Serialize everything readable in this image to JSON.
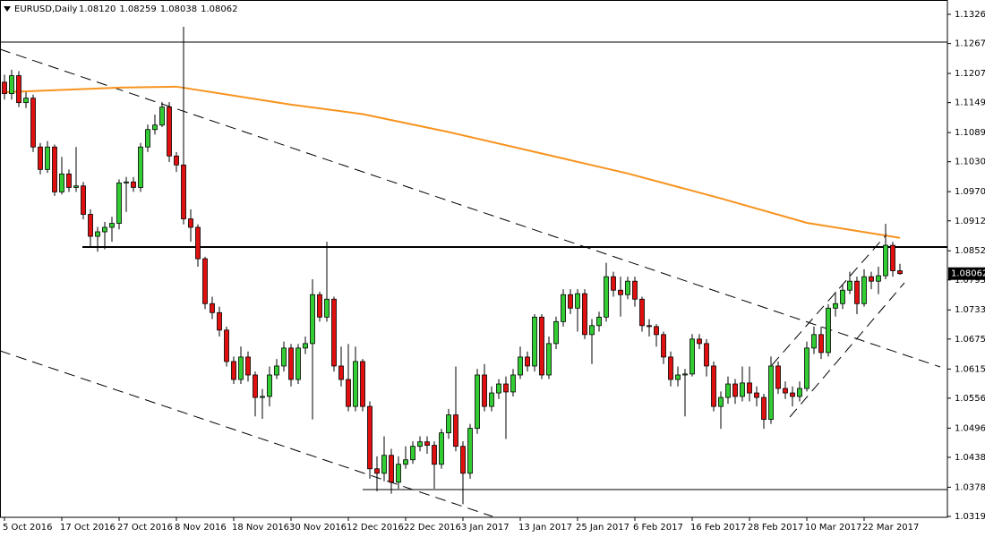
{
  "chart_data": {
    "type": "candlestick",
    "title": "EURUSD,Daily",
    "header_values": [
      "1.08120",
      "1.08259",
      "1.08038",
      "1.08062"
    ],
    "up_color": "#32cd32",
    "down_color": "#e01010",
    "wick_color": "#000000",
    "ylim": [
      1.03177,
      1.13547
    ],
    "yticks": [
      {
        "value": 1.1326,
        "label": "1.13260"
      },
      1.12675,
      1.12075,
      {
        "value": 1.1149,
        "label": "1.11490"
      },
      {
        "value": 1.1089,
        "label": "1.10890"
      },
      1.10305,
      1.09705,
      {
        "value": 1.0912,
        "label": "1.09120"
      },
      {
        "value": 1.0852,
        "label": "1.08520"
      },
      1.07935,
      1.07335,
      {
        "value": 1.0675,
        "label": "1.06750"
      },
      {
        "value": 1.0615,
        "label": "1.06150"
      },
      1.05565,
      1.04965,
      {
        "value": 1.0438,
        "label": "1.04380"
      },
      {
        "value": 1.0378,
        "label": "1.03780"
      },
      1.03195
    ],
    "categories": [
      "5 Oct 2016",
      null,
      null,
      null,
      null,
      null,
      null,
      null,
      "17 Oct 2016",
      null,
      null,
      null,
      null,
      null,
      null,
      null,
      "27 Oct 2016",
      null,
      null,
      null,
      null,
      null,
      null,
      null,
      "8 Nov 2016",
      null,
      null,
      null,
      null,
      null,
      null,
      null,
      "18 Nov 2016",
      null,
      null,
      null,
      null,
      null,
      null,
      null,
      "30 Nov 2016",
      null,
      null,
      null,
      null,
      null,
      null,
      null,
      "12 Dec 2016",
      null,
      null,
      null,
      null,
      null,
      null,
      null,
      "22 Dec 2016",
      null,
      null,
      null,
      null,
      null,
      null,
      null,
      "3 Jan 2017",
      null,
      null,
      null,
      null,
      null,
      null,
      null,
      "13 Jan 2017",
      null,
      null,
      null,
      null,
      null,
      null,
      null,
      "25 Jan 2017",
      null,
      null,
      null,
      null,
      null,
      null,
      null,
      "6 Feb 2017",
      null,
      null,
      null,
      null,
      null,
      null,
      null,
      "16 Feb 2017",
      null,
      null,
      null,
      null,
      null,
      null,
      null,
      "28 Feb 2017",
      null,
      null,
      null,
      null,
      null,
      null,
      null,
      "10 Mar 2017",
      null,
      null,
      null,
      null,
      null,
      null,
      null,
      "22 Mar 2017",
      null,
      null,
      null,
      null,
      null
    ],
    "open": [
      1.119,
      1.1167,
      1.1203,
      1.1149,
      1.1158,
      1.106,
      1.1015,
      1.106,
      1.097,
      1.1006,
      1.0979,
      1.0982,
      1.0925,
      1.0881,
      1.089,
      1.0899,
      1.0907,
      1.0988,
      1.099,
      1.0979,
      1.106,
      1.1095,
      1.1104,
      1.114,
      1.1042,
      1.1024,
      1.0916,
      1.0899,
      1.0836,
      1.0746,
      1.0728,
      1.0693,
      1.063,
      1.0594,
      1.0639,
      1.0603,
      1.0558,
      1.056,
      1.0603,
      1.0621,
      1.0657,
      1.0594,
      1.0657,
      1.0666,
      1.0764,
      1.0719,
      1.0755,
      1.0621,
      1.0594,
      1.054,
      1.063,
      1.054,
      1.0415,
      1.0406,
      1.0442,
      1.0388,
      1.0424,
      1.0433,
      1.046,
      1.0469,
      1.0462,
      1.0424,
      1.0487,
      1.0523,
      1.046,
      1.0406,
      1.0496,
      1.0603,
      1.054,
      1.0567,
      1.0585,
      1.0569,
      1.0603,
      1.0639,
      1.0621,
      1.0719,
      1.0603,
      1.0666,
      1.071,
      1.0764,
      1.0737,
      1.0766,
      1.0684,
      1.0702,
      1.0719,
      1.08,
      1.0773,
      1.0764,
      1.0791,
      1.0755,
      1.0702,
      1.07,
      1.0684,
      1.0639,
      1.0594,
      1.0603,
      1.0605,
      1.0675,
      1.0666,
      1.0621,
      1.054,
      1.0558,
      1.0585,
      1.056,
      1.0587,
      1.0567,
      1.0558,
      1.0514,
      1.0621,
      1.0576,
      1.0567,
      1.056,
      1.0576,
      1.0657,
      1.0684,
      1.0648,
      1.0737,
      1.0746,
      1.0773,
      1.0791,
      1.0746,
      1.08,
      1.0791,
      1.0802,
      1.0863,
      1.0812
    ],
    "high": [
      1.1205,
      1.1215,
      1.1212,
      1.117,
      1.1165,
      1.1068,
      1.1072,
      1.1065,
      1.104,
      1.1015,
      1.106,
      1.099,
      1.0935,
      1.09,
      1.091,
      1.092,
      1.0995,
      1.1,
      1.1,
      1.1068,
      1.1105,
      1.1125,
      1.115,
      1.115,
      1.105,
      1.1301,
      1.0935,
      1.0905,
      1.084,
      1.076,
      1.074,
      1.07,
      1.064,
      1.066,
      1.065,
      1.061,
      1.0575,
      1.062,
      1.0635,
      1.067,
      1.0665,
      1.0665,
      1.068,
      1.0795,
      1.077,
      1.087,
      1.076,
      1.066,
      1.0665,
      1.066,
      1.0635,
      1.055,
      1.044,
      1.048,
      1.0455,
      1.044,
      1.046,
      1.047,
      1.048,
      1.048,
      1.047,
      1.0495,
      1.0535,
      1.062,
      1.047,
      1.0505,
      1.0615,
      1.0625,
      1.058,
      1.0595,
      1.06,
      1.0615,
      1.066,
      1.065,
      1.0725,
      1.0725,
      1.068,
      1.072,
      1.0775,
      1.0775,
      1.0775,
      1.0775,
      1.0715,
      1.073,
      1.0828,
      1.081,
      1.08,
      1.08,
      1.08,
      1.076,
      1.0715,
      1.0705,
      1.069,
      1.065,
      1.062,
      1.0615,
      1.0685,
      1.0685,
      1.0675,
      1.063,
      1.057,
      1.06,
      1.0595,
      1.062,
      1.062,
      1.058,
      1.0565,
      1.064,
      1.063,
      1.059,
      1.058,
      1.059,
      1.067,
      1.07,
      1.07,
      1.0745,
      1.077,
      1.0785,
      1.081,
      1.08,
      1.0815,
      1.081,
      1.082,
      1.0906,
      1.087,
      1.08259
    ],
    "low": [
      1.1155,
      1.1155,
      1.114,
      1.1138,
      1.105,
      1.1005,
      1.1008,
      1.0962,
      1.0965,
      1.097,
      1.097,
      1.0915,
      1.086,
      1.085,
      1.0855,
      1.087,
      1.0895,
      1.093,
      1.097,
      1.097,
      1.105,
      1.1085,
      1.11,
      1.103,
      1.101,
      1.0905,
      1.087,
      1.082,
      1.0735,
      1.0715,
      1.068,
      1.062,
      1.0585,
      1.0585,
      1.059,
      1.052,
      1.0515,
      1.054,
      1.0595,
      1.061,
      1.058,
      1.0585,
      1.0645,
      1.0514,
      1.071,
      1.071,
      1.061,
      1.058,
      1.053,
      1.053,
      1.053,
      1.0395,
      1.037,
      1.039,
      1.0365,
      1.0375,
      1.0415,
      1.0425,
      1.045,
      1.0445,
      1.0375,
      1.0415,
      1.0475,
      1.045,
      1.0344,
      1.0395,
      1.0485,
      1.053,
      1.053,
      1.0555,
      1.0475,
      1.056,
      1.0595,
      1.061,
      1.061,
      1.0595,
      1.0595,
      1.0655,
      1.07,
      1.0725,
      1.069,
      1.0675,
      1.0625,
      1.069,
      1.071,
      1.076,
      1.072,
      1.0755,
      1.074,
      1.069,
      1.068,
      1.066,
      1.0625,
      1.058,
      1.058,
      1.052,
      1.06,
      1.0655,
      1.06,
      1.053,
      1.0495,
      1.0545,
      1.0545,
      1.055,
      1.055,
      1.054,
      1.0495,
      1.0505,
      1.0565,
      1.0555,
      1.054,
      1.055,
      1.057,
      1.0645,
      1.0635,
      1.064,
      1.072,
      1.0735,
      1.0765,
      1.0725,
      1.074,
      1.0775,
      1.0765,
      1.0795,
      1.08,
      1.08038
    ],
    "close": [
      1.1167,
      1.1203,
      1.1149,
      1.1158,
      1.106,
      1.1015,
      1.106,
      1.097,
      1.1006,
      1.0979,
      1.0982,
      1.0925,
      1.0881,
      1.089,
      1.0899,
      1.0907,
      1.0988,
      1.099,
      1.0979,
      1.106,
      1.1095,
      1.1104,
      1.114,
      1.1042,
      1.1024,
      1.0916,
      1.0899,
      1.0836,
      1.0746,
      1.0728,
      1.0693,
      1.063,
      1.0594,
      1.0639,
      1.0603,
      1.0558,
      1.056,
      1.0603,
      1.0621,
      1.0657,
      1.0594,
      1.0657,
      1.0666,
      1.0764,
      1.0719,
      1.0755,
      1.0621,
      1.0594,
      1.054,
      1.063,
      1.054,
      1.0415,
      1.0406,
      1.0442,
      1.0388,
      1.0424,
      1.0433,
      1.046,
      1.0469,
      1.0462,
      1.0424,
      1.0487,
      1.0523,
      1.046,
      1.0406,
      1.0496,
      1.0603,
      1.054,
      1.0567,
      1.0585,
      1.0569,
      1.0603,
      1.0639,
      1.0621,
      1.0719,
      1.0603,
      1.0666,
      1.071,
      1.0764,
      1.0737,
      1.0766,
      1.0684,
      1.0702,
      1.0719,
      1.08,
      1.0773,
      1.0764,
      1.0791,
      1.0755,
      1.0702,
      1.07,
      1.0684,
      1.0639,
      1.0594,
      1.0603,
      1.0605,
      1.0675,
      1.0666,
      1.0621,
      1.054,
      1.0558,
      1.0585,
      1.056,
      1.0587,
      1.0567,
      1.0558,
      1.0514,
      1.0621,
      1.0576,
      1.0567,
      1.056,
      1.0576,
      1.0657,
      1.0684,
      1.0648,
      1.0737,
      1.0746,
      1.0773,
      1.0791,
      1.0746,
      1.08,
      1.0791,
      1.0802,
      1.0863,
      1.0812,
      1.08062
    ],
    "moving_average": {
      "color": "#f7931e",
      "x": [
        0,
        16,
        24,
        40,
        50,
        62,
        75,
        87,
        100,
        112,
        125
      ],
      "values": [
        1.117,
        1.1179,
        1.1181,
        1.1145,
        1.1126,
        1.109,
        1.1047,
        1.1007,
        1.0957,
        1.0908,
        1.0878
      ]
    }
  }
}
